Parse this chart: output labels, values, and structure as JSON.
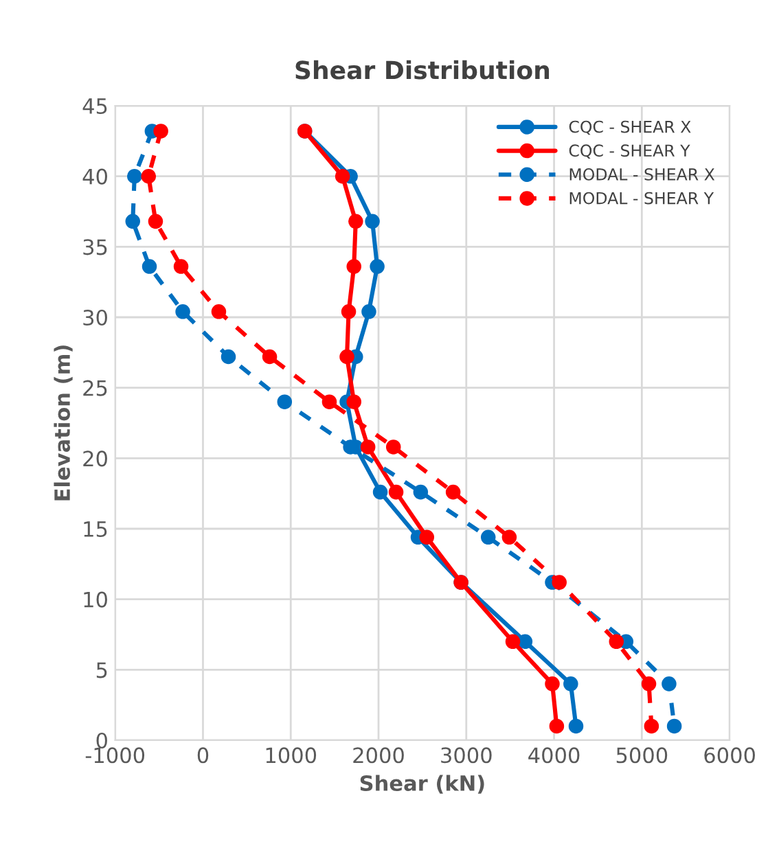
{
  "chart_data": {
    "type": "line",
    "title": "Shear Distribution",
    "xlabel": "Shear (kN)",
    "ylabel": "Elevation (m)",
    "xlim": [
      -1000,
      6000
    ],
    "xticks": [
      -1000,
      0,
      1000,
      2000,
      3000,
      4000,
      5000,
      6000
    ],
    "ylim": [
      0,
      45
    ],
    "yticks": [
      0,
      5,
      10,
      15,
      20,
      25,
      30,
      35,
      40,
      45
    ],
    "grid": true,
    "legend": "top right",
    "marker": "circle",
    "series": [
      {
        "name": "CQC - SHEAR X",
        "color": "#0070c0",
        "line_style": "solid",
        "x": [
          1160,
          1680,
          1930,
          1985,
          1890,
          1740,
          1640,
          1740,
          2020,
          2450,
          2940,
          3670,
          4190,
          4250
        ],
        "values": [
          43.2,
          40,
          36.8,
          33.6,
          30.4,
          27.2,
          24,
          20.8,
          17.6,
          14.4,
          11.2,
          7,
          4,
          1
        ]
      },
      {
        "name": "CQC - SHEAR Y",
        "color": "#ff0000",
        "line_style": "solid",
        "x": [
          1160,
          1590,
          1740,
          1720,
          1660,
          1640,
          1720,
          1880,
          2200,
          2550,
          2940,
          3530,
          3980,
          4030
        ],
        "values": [
          43.2,
          40,
          36.8,
          33.6,
          30.4,
          27.2,
          24,
          20.8,
          17.6,
          14.4,
          11.2,
          7,
          4,
          1
        ]
      },
      {
        "name": "MODAL - SHEAR X",
        "color": "#0070c0",
        "line_style": "dashed",
        "x": [
          -580,
          -780,
          -800,
          -610,
          -230,
          290,
          930,
          1680,
          2480,
          3250,
          3980,
          4820,
          5310,
          5370
        ],
        "values": [
          43.2,
          40,
          36.8,
          33.6,
          30.4,
          27.2,
          24,
          20.8,
          17.6,
          14.4,
          11.2,
          7,
          4,
          1
        ]
      },
      {
        "name": "MODAL - SHEAR Y",
        "color": "#ff0000",
        "line_style": "dashed",
        "x": [
          -480,
          -620,
          -540,
          -250,
          180,
          760,
          1440,
          2170,
          2850,
          3490,
          4060,
          4710,
          5080,
          5110
        ],
        "values": [
          43.2,
          40,
          36.8,
          33.6,
          30.4,
          27.2,
          24,
          20.8,
          17.6,
          14.4,
          11.2,
          7,
          4,
          1
        ]
      }
    ]
  }
}
